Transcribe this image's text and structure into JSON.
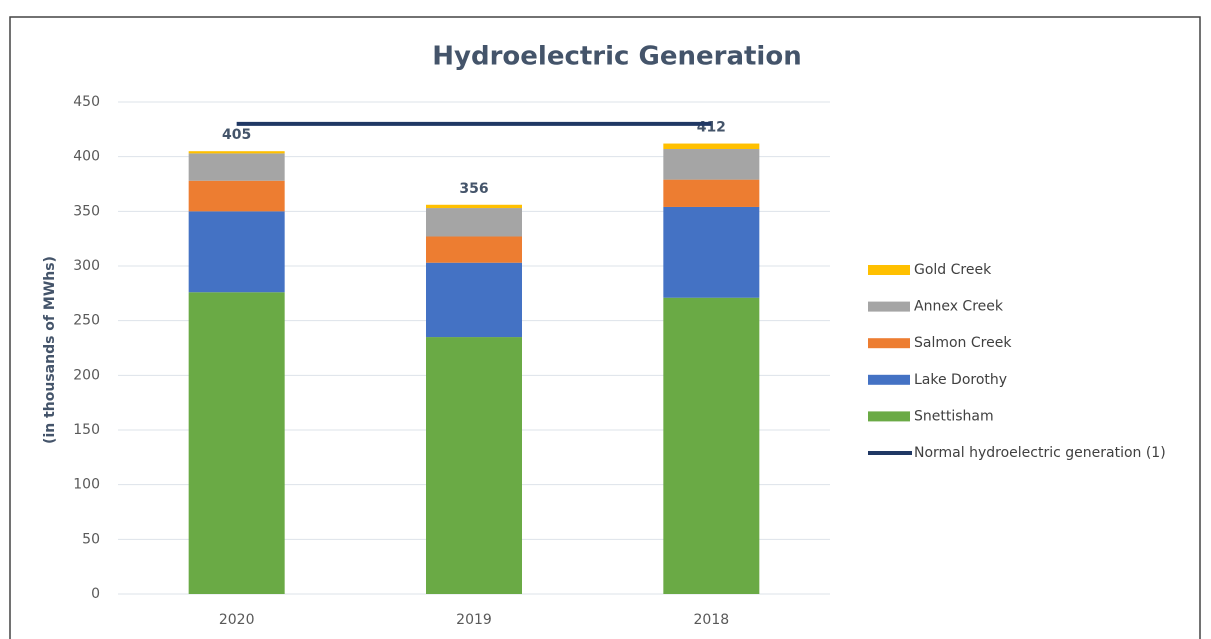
{
  "chart_data": {
    "type": "bar",
    "title": "Hydroelectric Generation",
    "y_label": "(in thousands of MWhs)",
    "categories": [
      "2020",
      "2019",
      "2018"
    ],
    "stacked": true,
    "series": [
      {
        "name": "Snettisham",
        "color": "#6aaa45",
        "values": [
          276,
          235,
          271
        ]
      },
      {
        "name": "Lake Dorothy",
        "color": "#4472c4",
        "values": [
          74,
          68,
          83
        ]
      },
      {
        "name": "Salmon Creek",
        "color": "#ed7d31",
        "values": [
          28,
          24,
          25
        ]
      },
      {
        "name": "Annex Creek",
        "color": "#a5a5a5",
        "values": [
          25,
          26,
          28
        ]
      },
      {
        "name": "Gold Creek",
        "color": "#ffc000",
        "values": [
          2,
          3,
          5
        ]
      },
      {
        "name": "Normal hydroelectric generation (1)",
        "color": "#203864",
        "type": "line",
        "values": [
          430,
          430,
          430
        ]
      }
    ],
    "totals": [
      405,
      356,
      412
    ],
    "ylim": [
      0,
      450
    ],
    "yticks": [
      0,
      50,
      100,
      150,
      200,
      250,
      300,
      350,
      400,
      450
    ],
    "grid": true
  }
}
